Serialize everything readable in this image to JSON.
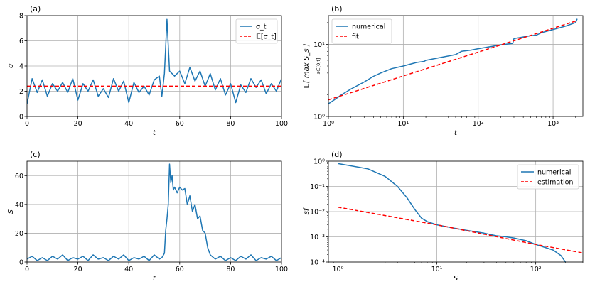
{
  "chart_data": [
    {
      "type": "line",
      "panel_label": "(a)",
      "xlabel": "t",
      "ylabel": "σ",
      "xlim": [
        0,
        100
      ],
      "ylim": [
        0,
        8
      ],
      "xscale": "linear",
      "yscale": "linear",
      "xticks": [
        0,
        20,
        40,
        60,
        80,
        100
      ],
      "xtick_labels": [
        "0",
        "20",
        "40",
        "60",
        "80",
        "100"
      ],
      "yticks": [
        0,
        2,
        4,
        6,
        8
      ],
      "ytick_labels": [
        "0",
        "2",
        "4",
        "6",
        "8"
      ],
      "grid": true,
      "legend_position": "top-right",
      "series": [
        {
          "name": "σ_t",
          "color": "#1f77b4",
          "style": "solid",
          "x": [
            0,
            2,
            4,
            6,
            8,
            10,
            12,
            14,
            16,
            18,
            20,
            22,
            24,
            26,
            28,
            30,
            32,
            34,
            36,
            38,
            40,
            42,
            44,
            46,
            48,
            50,
            52,
            53,
            54,
            55,
            56,
            57,
            58,
            60,
            62,
            64,
            66,
            68,
            70,
            72,
            74,
            76,
            78,
            80,
            82,
            84,
            86,
            88,
            90,
            92,
            94,
            96,
            98,
            100
          ],
          "y": [
            1.0,
            3.0,
            1.9,
            2.9,
            1.6,
            2.6,
            2.0,
            2.7,
            1.9,
            3.0,
            1.3,
            2.6,
            2.0,
            2.9,
            1.6,
            2.2,
            1.5,
            3.0,
            2.0,
            2.8,
            1.1,
            2.7,
            1.9,
            2.4,
            1.7,
            2.9,
            3.2,
            1.6,
            3.4,
            7.7,
            3.6,
            3.4,
            3.2,
            3.6,
            2.6,
            3.9,
            2.8,
            3.6,
            2.4,
            3.4,
            2.1,
            3.0,
            1.7,
            2.6,
            1.1,
            2.5,
            1.9,
            3.0,
            2.3,
            2.9,
            1.8,
            2.6,
            2.0,
            3.0
          ]
        },
        {
          "name": "𝔼[σ_t]",
          "color": "#ff0000",
          "style": "dashed",
          "x": [
            0,
            100
          ],
          "y": [
            2.4,
            2.4
          ]
        }
      ]
    },
    {
      "type": "line",
      "panel_label": "(b)",
      "xlabel": "t",
      "ylabel": "𝔼[ max S_s ]",
      "ylabel_subscript": "s∈[0,t]",
      "xlim": [
        1,
        2500
      ],
      "ylim": [
        1,
        25
      ],
      "xscale": "log",
      "yscale": "log",
      "xticks": [
        1,
        10,
        100,
        1000
      ],
      "xtick_labels": [
        "10⁰",
        "10¹",
        "10²",
        "10³"
      ],
      "yticks": [
        1,
        10
      ],
      "ytick_labels": [
        "10⁰",
        "10¹"
      ],
      "grid": true,
      "legend_position": "top-left",
      "series": [
        {
          "name": "numerical",
          "color": "#1f77b4",
          "style": "solid",
          "x": [
            1,
            1.2,
            1.5,
            2,
            3,
            4,
            5,
            7,
            10,
            15,
            19,
            20,
            30,
            50,
            60,
            80,
            100,
            200,
            290,
            300,
            500,
            600,
            700,
            1000,
            1500,
            2000,
            2100
          ],
          "y": [
            1.5,
            1.7,
            2.0,
            2.4,
            3.0,
            3.6,
            4.0,
            4.6,
            5.0,
            5.6,
            5.8,
            6.0,
            6.5,
            7.2,
            8.0,
            8.3,
            8.7,
            9.8,
            10.3,
            12.0,
            13.2,
            13.4,
            14.5,
            16.0,
            18.0,
            20.0,
            22.5
          ]
        },
        {
          "name": "fit",
          "color": "#ff0000",
          "style": "dashed",
          "x": [
            1,
            2000
          ],
          "y": [
            1.7,
            21.0
          ]
        }
      ]
    },
    {
      "type": "line",
      "panel_label": "(c)",
      "xlabel": "t",
      "ylabel": "S",
      "xlim": [
        0,
        100
      ],
      "ylim": [
        0,
        70
      ],
      "xscale": "linear",
      "yscale": "linear",
      "xticks": [
        0,
        20,
        40,
        60,
        80,
        100
      ],
      "xtick_labels": [
        "0",
        "20",
        "40",
        "60",
        "80",
        "100"
      ],
      "yticks": [
        0,
        20,
        40,
        60
      ],
      "ytick_labels": [
        "0",
        "20",
        "40",
        "60"
      ],
      "grid": true,
      "series": [
        {
          "name": "S",
          "color": "#1f77b4",
          "style": "solid",
          "x": [
            0,
            2,
            4,
            6,
            8,
            10,
            12,
            14,
            16,
            18,
            20,
            22,
            24,
            26,
            28,
            30,
            32,
            34,
            36,
            38,
            40,
            42,
            44,
            46,
            48,
            50,
            52,
            53,
            54,
            54.5,
            55,
            55.5,
            56,
            56.5,
            57,
            57.5,
            58,
            59,
            60,
            61,
            62,
            63,
            64,
            65,
            66,
            67,
            68,
            69,
            70,
            71,
            72,
            74,
            76,
            78,
            80,
            82,
            84,
            86,
            88,
            90,
            92,
            94,
            96,
            98,
            100
          ],
          "y": [
            2,
            4,
            1,
            3,
            1,
            4,
            2,
            5,
            1,
            3,
            2,
            4,
            1,
            5,
            2,
            3,
            1,
            4,
            2,
            5,
            1,
            3,
            2,
            4,
            1,
            5,
            2,
            3,
            6,
            22,
            30,
            40,
            68,
            55,
            60,
            50,
            52,
            48,
            52,
            50,
            51,
            40,
            46,
            35,
            40,
            30,
            32,
            22,
            20,
            10,
            5,
            2,
            4,
            1,
            3,
            1,
            4,
            2,
            5,
            1,
            3,
            2,
            4,
            1,
            3
          ]
        }
      ]
    },
    {
      "type": "line",
      "panel_label": "(d)",
      "xlabel": "S",
      "ylabel": "sf",
      "xlim": [
        0.8,
        300
      ],
      "ylim": [
        0.0001,
        1
      ],
      "xscale": "log",
      "yscale": "log",
      "xticks": [
        1,
        10,
        100
      ],
      "xtick_labels": [
        "10⁰",
        "10¹",
        "10²"
      ],
      "yticks": [
        0.0001,
        0.001,
        0.01,
        0.1,
        1
      ],
      "ytick_labels": [
        "10⁻⁴",
        "10⁻³",
        "10⁻²",
        "10⁻¹",
        "10⁰"
      ],
      "grid": true,
      "legend_position": "top-right",
      "series": [
        {
          "name": "numerical",
          "color": "#1f77b4",
          "style": "solid",
          "x": [
            1,
            2,
            3,
            4,
            5,
            6,
            7,
            8,
            10,
            15,
            20,
            30,
            40,
            50,
            60,
            80,
            100,
            150,
            180,
            200
          ],
          "y": [
            0.8,
            0.5,
            0.25,
            0.1,
            0.035,
            0.012,
            0.0055,
            0.004,
            0.003,
            0.0022,
            0.0018,
            0.0014,
            0.0011,
            0.001,
            0.0009,
            0.0007,
            0.0005,
            0.0003,
            0.00018,
            0.0001
          ]
        },
        {
          "name": "estimation",
          "color": "#ff0000",
          "style": "dashed",
          "x": [
            1,
            10,
            100,
            300
          ],
          "y": [
            0.015,
            0.003,
            0.0005,
            0.00023
          ]
        }
      ]
    }
  ]
}
